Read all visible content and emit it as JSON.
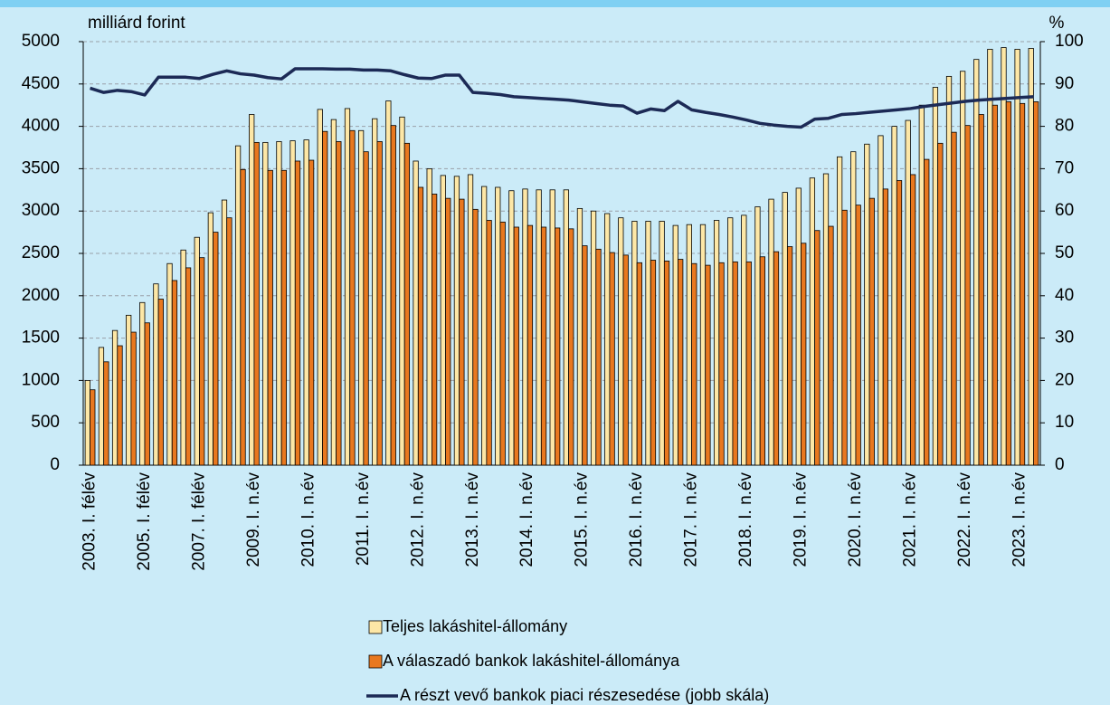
{
  "chart_data": {
    "type": "bar",
    "y_label": "milliárd forint",
    "y2_label": "%",
    "categories": [
      "2003. I. félév",
      null,
      null,
      null,
      "2005. I. félév",
      null,
      null,
      null,
      "2007. I. félév",
      null,
      null,
      null,
      "2009. I. n.év",
      null,
      null,
      null,
      "2010. I. n.év",
      null,
      null,
      null,
      "2011. I. n.év",
      null,
      null,
      null,
      "2012. I. n.év",
      null,
      null,
      null,
      "2013. I. n.év",
      null,
      null,
      null,
      "2014. I. n.év",
      null,
      null,
      null,
      "2015. I. n.év",
      null,
      null,
      null,
      "2016. I. n.év",
      null,
      null,
      null,
      "2017. I. n.év",
      null,
      null,
      null,
      "2018. I. n.év",
      null,
      null,
      null,
      "2019. I. n.év",
      null,
      null,
      null,
      "2020. I. n.év",
      null,
      null,
      null,
      "2021. I. n.év",
      null,
      null,
      null,
      "2022. I. n.év",
      null,
      null,
      null,
      "2023. I. n.év",
      null
    ],
    "series": [
      {
        "name": "Teljes lakáshitel-állomány",
        "type": "bar",
        "color": "#fde7a6",
        "values": [
          1000,
          1390,
          1590,
          1770,
          1920,
          2140,
          2380,
          2540,
          2690,
          2980,
          3130,
          3770,
          4140,
          3810,
          3820,
          3830,
          3840,
          4200,
          4080,
          4210,
          3950,
          4090,
          4300,
          4110,
          3590,
          3500,
          3420,
          3410,
          3430,
          3290,
          3280,
          3240,
          3260,
          3250,
          3250,
          3250,
          3030,
          3000,
          2970,
          2920,
          2880,
          2880,
          2880,
          2830,
          2840,
          2840,
          2890,
          2920,
          2950,
          3050,
          3140,
          3220,
          3270,
          3390,
          3440,
          3640,
          3700,
          3790,
          3890,
          4000,
          4070,
          4250,
          4460,
          4590,
          4650,
          4790,
          4910,
          4930,
          4910,
          4920
        ]
      },
      {
        "name": "A válaszadó bankok lakáshitel-állománya",
        "type": "bar",
        "color": "#e8781f",
        "values": [
          890,
          1220,
          1410,
          1570,
          1680,
          1960,
          2180,
          2330,
          2450,
          2750,
          2920,
          3490,
          3810,
          3480,
          3480,
          3590,
          3600,
          3940,
          3820,
          3950,
          3700,
          3820,
          4010,
          3800,
          3280,
          3200,
          3150,
          3140,
          3020,
          2890,
          2870,
          2810,
          2830,
          2810,
          2800,
          2790,
          2590,
          2550,
          2510,
          2480,
          2390,
          2420,
          2410,
          2430,
          2380,
          2360,
          2390,
          2400,
          2400,
          2460,
          2520,
          2580,
          2620,
          2770,
          2820,
          3010,
          3070,
          3150,
          3260,
          3360,
          3430,
          3610,
          3800,
          3930,
          4010,
          4140,
          4250,
          4290,
          4270,
          4290
        ]
      },
      {
        "name": "A részt vevő bankok piaci részesedése (jobb skála)",
        "type": "line",
        "axis": "y2",
        "color": "#1c2a56",
        "values": [
          89,
          88,
          88.5,
          88.2,
          87.4,
          91.6,
          91.6,
          91.6,
          91.3,
          92.3,
          93.1,
          92.4,
          92.1,
          91.5,
          91.2,
          93.6,
          93.6,
          93.6,
          93.5,
          93.5,
          93.3,
          93.3,
          93.1,
          92.2,
          91.4,
          91.3,
          92.1,
          92.1,
          88,
          87.8,
          87.5,
          87,
          86.8,
          86.6,
          86.4,
          86.2,
          85.8,
          85.4,
          85,
          84.8,
          83.1,
          84.1,
          83.7,
          85.9,
          83.9,
          83.3,
          82.8,
          82.2,
          81.5,
          80.7,
          80.3,
          80,
          79.8,
          81.7,
          81.9,
          82.8,
          83,
          83.3,
          83.6,
          83.9,
          84.2,
          84.7,
          85.1,
          85.5,
          85.9,
          86.2,
          86.4,
          86.6,
          86.8,
          87
        ]
      }
    ],
    "ylim": [
      0,
      5000
    ],
    "yticks": [
      0,
      500,
      1000,
      1500,
      2000,
      2500,
      3000,
      3500,
      4000,
      4500,
      5000
    ],
    "y2lim": [
      0,
      100
    ],
    "y2ticks": [
      0,
      10,
      20,
      30,
      40,
      50,
      60,
      70,
      80,
      90,
      100
    ],
    "grid": true,
    "legend": "bottom"
  }
}
